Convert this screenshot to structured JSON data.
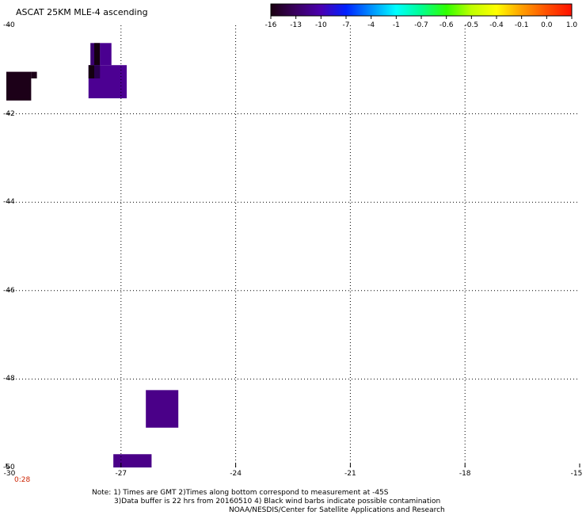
{
  "title": "ASCAT 25KM MLE-4 ascending",
  "colorbar": {
    "labels": [
      "-16",
      "-13",
      "-10",
      "-7",
      "-4",
      "-1",
      "-0.7",
      "-0.6",
      "-0.5",
      "-0.4",
      "-0.1",
      "0.0",
      "1.0"
    ],
    "colors": [
      "#1a0010",
      "#3a0060",
      "#4a00b0",
      "#0020ff",
      "#0090ff",
      "#00ffff",
      "#00ff90",
      "#30ff00",
      "#c0ff00",
      "#ffff00",
      "#ffa000",
      "#ff5000",
      "#ff1000"
    ]
  },
  "map": {
    "lat_labels": [
      "-40",
      "-42",
      "-44",
      "-46",
      "-48",
      "-50"
    ],
    "lon_labels": [
      "-30",
      "-27",
      "-24",
      "-21",
      "-18",
      "-15"
    ],
    "lat_range": [
      -50,
      -40
    ],
    "lon_range": [
      -30,
      -15
    ],
    "time_label": "0:28",
    "patches": [
      {
        "lon": [
          -30.0,
          -29.35
        ],
        "lat": [
          -41.7,
          -41.05
        ],
        "color": "#1c0018"
      },
      {
        "lon": [
          -29.35,
          -29.2
        ],
        "lat": [
          -41.2,
          -41.05
        ],
        "color": "#1c0018"
      },
      {
        "lon": [
          -27.8,
          -27.55
        ],
        "lat": [
          -40.9,
          -40.4
        ],
        "color": "#3a0070"
      },
      {
        "lon": [
          -27.7,
          -27.55
        ],
        "lat": [
          -40.9,
          -40.4
        ],
        "color": "#140010"
      },
      {
        "lon": [
          -27.55,
          -27.25
        ],
        "lat": [
          -40.9,
          -40.4
        ],
        "color": "#4a0090"
      },
      {
        "lon": [
          -27.85,
          -26.85
        ],
        "lat": [
          -41.65,
          -40.9
        ],
        "color": "#4c0092"
      },
      {
        "lon": [
          -27.85,
          -27.7
        ],
        "lat": [
          -41.2,
          -40.9
        ],
        "color": "#140010"
      },
      {
        "lon": [
          -27.7,
          -27.55
        ],
        "lat": [
          -41.2,
          -40.9
        ],
        "color": "#2a0050"
      },
      {
        "lon": [
          -26.35,
          -25.5
        ],
        "lat": [
          -49.1,
          -48.25
        ],
        "color": "#4a0088"
      },
      {
        "lon": [
          -27.2,
          -26.2
        ],
        "lat": [
          -50.0,
          -49.7
        ],
        "color": "#4a0088"
      }
    ]
  },
  "notes": {
    "line1": "Note: 1) Times are GMT 2)Times along bottom correspond to measurement at -45S",
    "line2": "3)Data buffer is 22 hrs from 20160510 4) Black wind barbs indicate possible contamination",
    "line3": "NOAA/NESDIS/Center for Satellite Applications and Research"
  }
}
